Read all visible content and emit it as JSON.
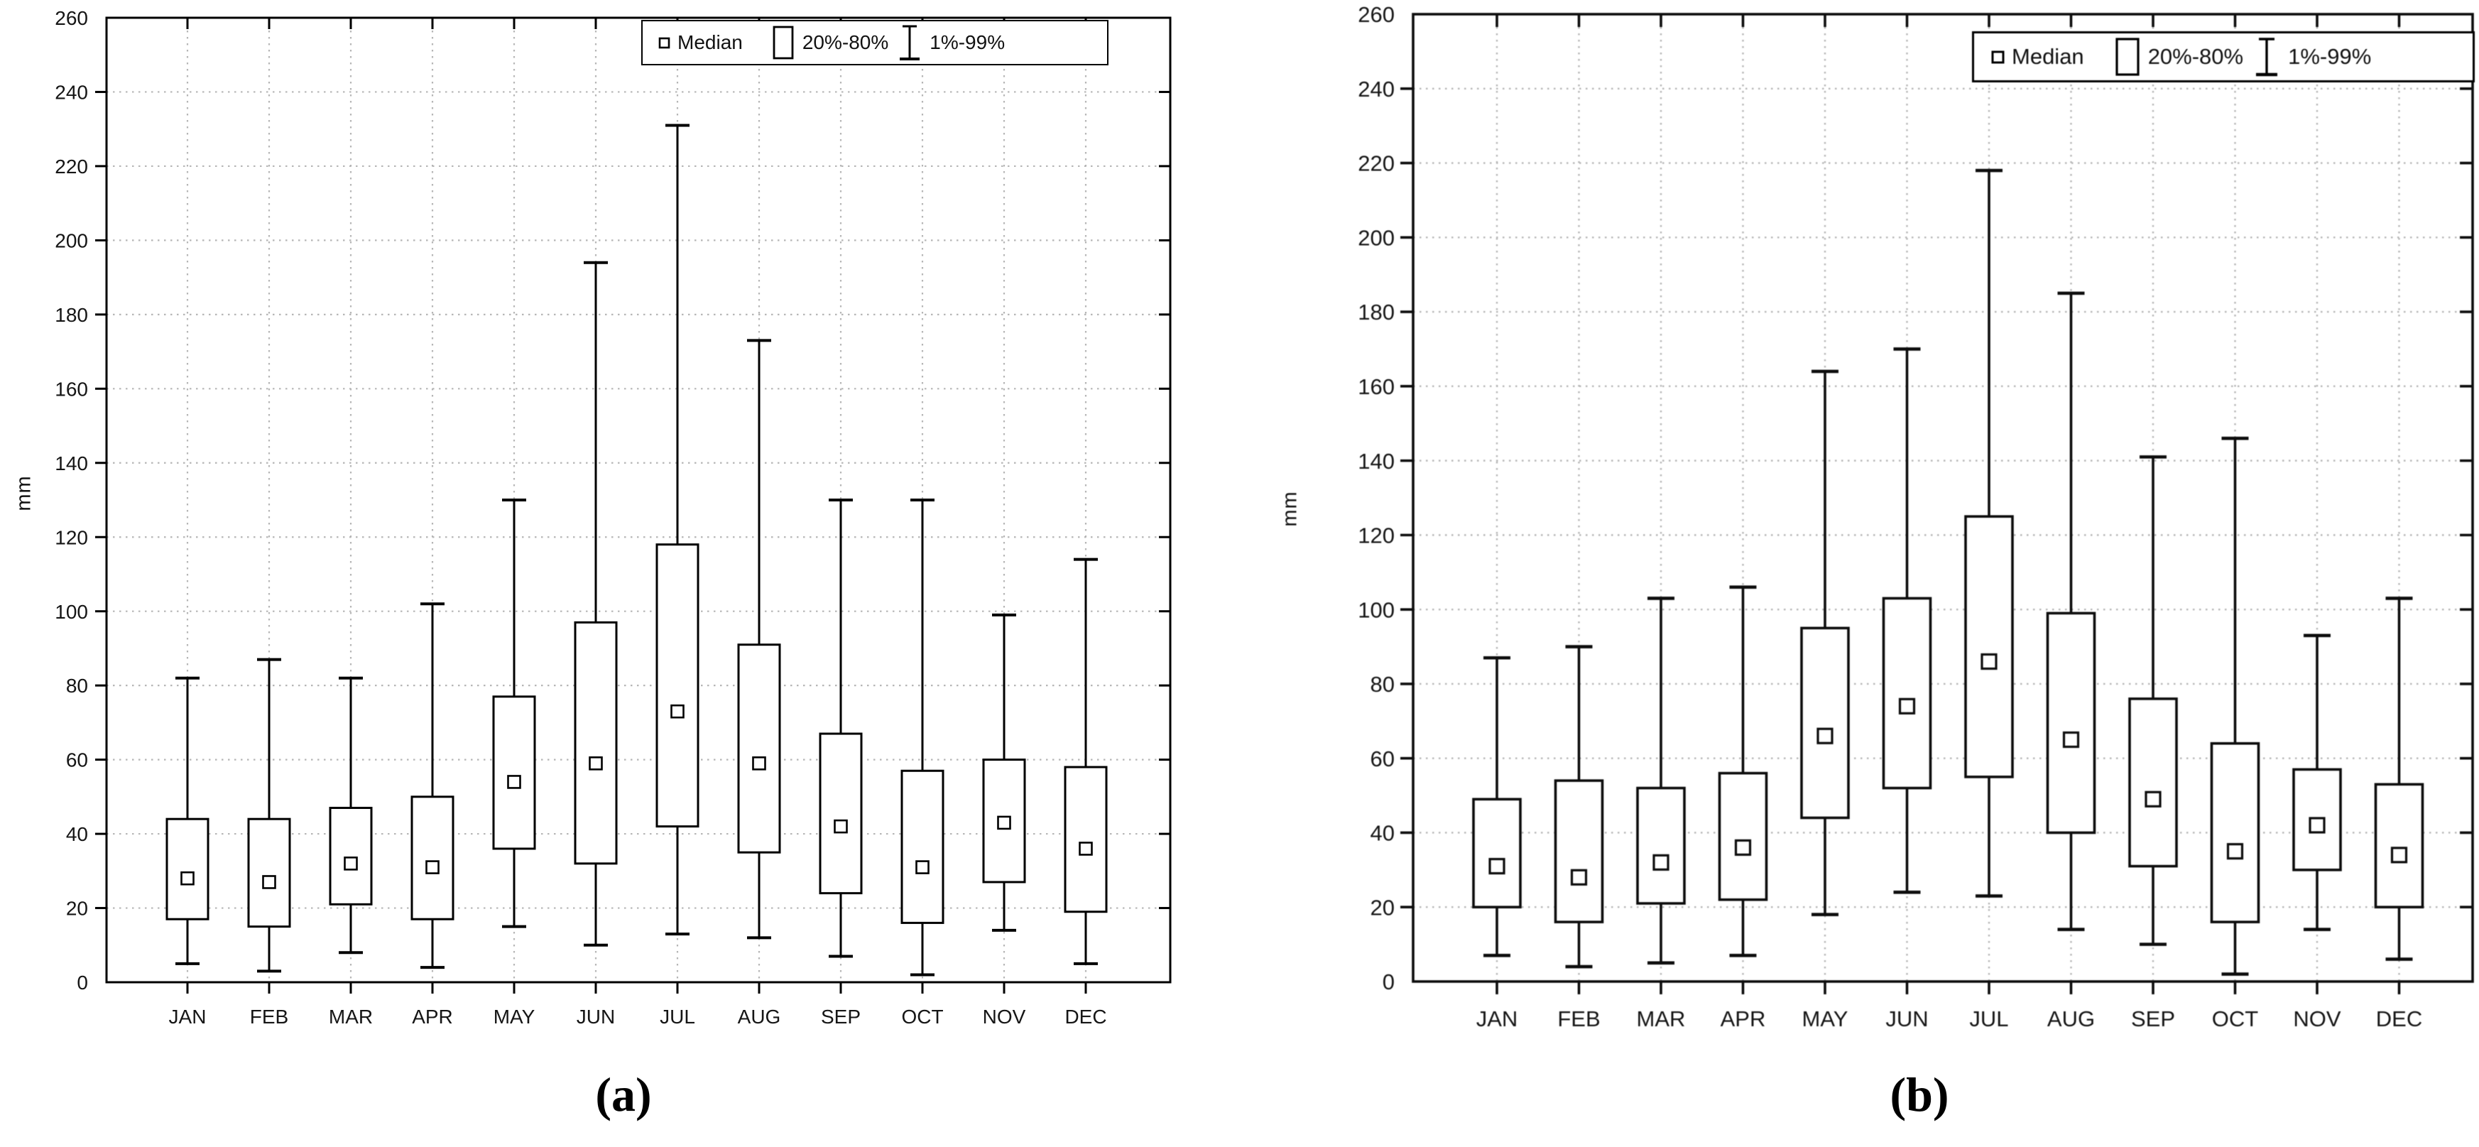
{
  "chart_data": [
    {
      "type": "boxplot",
      "panel_label": "(a)",
      "ylabel": "mm",
      "ylim": [
        0,
        260
      ],
      "ytick_step": 20,
      "grid": true,
      "legend_position": "top-right",
      "legend": [
        "Median",
        "20%-80%",
        "1%-99%"
      ],
      "categories": [
        "JAN",
        "FEB",
        "MAR",
        "APR",
        "MAY",
        "JUN",
        "JUL",
        "AUG",
        "SEP",
        "OCT",
        "NOV",
        "DEC"
      ],
      "series": [
        {
          "category": "JAN",
          "p1": 5,
          "p20": 17,
          "median": 28,
          "p80": 44,
          "p99": 82
        },
        {
          "category": "FEB",
          "p1": 3,
          "p20": 15,
          "median": 27,
          "p80": 44,
          "p99": 87
        },
        {
          "category": "MAR",
          "p1": 8,
          "p20": 21,
          "median": 32,
          "p80": 47,
          "p99": 82
        },
        {
          "category": "APR",
          "p1": 4,
          "p20": 17,
          "median": 31,
          "p80": 50,
          "p99": 102
        },
        {
          "category": "MAY",
          "p1": 15,
          "p20": 36,
          "median": 54,
          "p80": 77,
          "p99": 130
        },
        {
          "category": "JUN",
          "p1": 10,
          "p20": 32,
          "median": 59,
          "p80": 97,
          "p99": 194
        },
        {
          "category": "JUL",
          "p1": 13,
          "p20": 42,
          "median": 73,
          "p80": 118,
          "p99": 231
        },
        {
          "category": "AUG",
          "p1": 12,
          "p20": 35,
          "median": 59,
          "p80": 91,
          "p99": 173
        },
        {
          "category": "SEP",
          "p1": 7,
          "p20": 24,
          "median": 42,
          "p80": 67,
          "p99": 130
        },
        {
          "category": "OCT",
          "p1": 2,
          "p20": 16,
          "median": 31,
          "p80": 57,
          "p99": 130
        },
        {
          "category": "NOV",
          "p1": 14,
          "p20": 27,
          "median": 43,
          "p80": 60,
          "p99": 99
        },
        {
          "category": "DEC",
          "p1": 5,
          "p20": 19,
          "median": 36,
          "p80": 58,
          "p99": 114
        }
      ]
    },
    {
      "type": "boxplot",
      "panel_label": "(b)",
      "ylabel": "mm",
      "ylim": [
        0,
        260
      ],
      "ytick_step": 20,
      "grid": true,
      "legend_position": "top-right",
      "legend": [
        "Median",
        "20%-80%",
        "1%-99%"
      ],
      "categories": [
        "JAN",
        "FEB",
        "MAR",
        "APR",
        "MAY",
        "JUN",
        "JUL",
        "AUG",
        "SEP",
        "OCT",
        "NOV",
        "DEC"
      ],
      "series": [
        {
          "category": "JAN",
          "p1": 7,
          "p20": 20,
          "median": 31,
          "p80": 49,
          "p99": 87
        },
        {
          "category": "FEB",
          "p1": 4,
          "p20": 16,
          "median": 28,
          "p80": 54,
          "p99": 90
        },
        {
          "category": "MAR",
          "p1": 5,
          "p20": 21,
          "median": 32,
          "p80": 52,
          "p99": 103
        },
        {
          "category": "APR",
          "p1": 7,
          "p20": 22,
          "median": 36,
          "p80": 56,
          "p99": 106
        },
        {
          "category": "MAY",
          "p1": 18,
          "p20": 44,
          "median": 66,
          "p80": 95,
          "p99": 164
        },
        {
          "category": "JUN",
          "p1": 24,
          "p20": 52,
          "median": 74,
          "p80": 103,
          "p99": 170
        },
        {
          "category": "JUL",
          "p1": 23,
          "p20": 55,
          "median": 86,
          "p80": 125,
          "p99": 218
        },
        {
          "category": "AUG",
          "p1": 14,
          "p20": 40,
          "median": 65,
          "p80": 99,
          "p99": 185
        },
        {
          "category": "SEP",
          "p1": 10,
          "p20": 31,
          "median": 49,
          "p80": 76,
          "p99": 141
        },
        {
          "category": "OCT",
          "p1": 2,
          "p20": 16,
          "median": 35,
          "p80": 64,
          "p99": 146
        },
        {
          "category": "NOV",
          "p1": 14,
          "p20": 30,
          "median": 42,
          "p80": 57,
          "p99": 93
        },
        {
          "category": "DEC",
          "p1": 6,
          "p20": 20,
          "median": 34,
          "p80": 53,
          "p99": 103
        }
      ]
    }
  ]
}
